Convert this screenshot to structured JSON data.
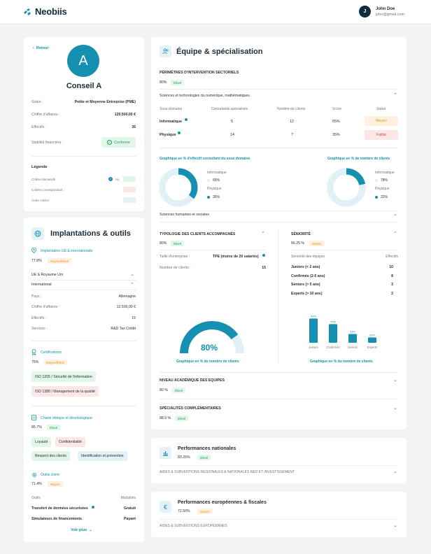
{
  "brand": {
    "name": "Neobiis"
  },
  "user": {
    "initial": "J",
    "name": "John Doe",
    "email": "john@gmail.com"
  },
  "profile": {
    "back": "Retour",
    "initial": "A",
    "name": "Conseil A",
    "rows": [
      {
        "label": "Statut :",
        "value": "Petite et Moyenne Entreprise (PME)"
      },
      {
        "label": "Chiffre d'affaires :",
        "value": "120.500,00 €"
      },
      {
        "label": "Effectifs :",
        "value": "35"
      },
      {
        "label": "Stabilité financière :",
        "value": "Conforme"
      }
    ],
    "legend_title": "Légende",
    "legend": [
      {
        "label": "Critère demandé :",
        "extra": "ou"
      },
      {
        "label": "Critère correspondant :"
      },
      {
        "label": "Autre critère :"
      }
    ]
  },
  "implant": {
    "title": "Implantations & outils",
    "intl": {
      "title": "Implantation UE & internationale",
      "pct": "77.8%",
      "badge": "Moyen/Élevé"
    },
    "rows1": [
      "UE & Royaume Uni",
      "International"
    ],
    "details": [
      {
        "label": "Pays :",
        "value": "Allemagne"
      },
      {
        "label": "Chiffre d'affaires :",
        "value": "12.500,00 €"
      },
      {
        "label": "Effectifs :",
        "value": "15"
      },
      {
        "label": "Services :",
        "value": "R&D Tax Crédit"
      }
    ],
    "certif": {
      "title": "Certifications",
      "pct": "75%",
      "badge": "Moyen/Élevé",
      "tags": [
        "ISO 1205 / Sécurité de l'information",
        "ISO 1380 / Management de la qualité"
      ]
    },
    "charte": {
      "title": "Charte éthique et déontologique",
      "pct": "85.7%",
      "badge": "Élevé",
      "tags": [
        "Loyauté",
        "Confidentialité",
        "Respect des clients",
        "Identification et prévention"
      ]
    },
    "outils": {
      "title": "Outils client",
      "pct": "71.4%",
      "badge": "Moyen",
      "col1": "Outils",
      "col2": "Modalités",
      "rows": [
        {
          "name": "Transfert de données sécurisées",
          "mode": "Gratuit"
        },
        {
          "name": "Simulateurs de financements",
          "mode": "Payant"
        }
      ]
    },
    "more": "Voir plus"
  },
  "equipe": {
    "title": "Équipe & spécialisation",
    "perim": {
      "title": "PÉRIMÈTRES D'INTERVENTION SECTORIELS",
      "pct": "80%",
      "badge": "Élevé"
    },
    "sector1": "Sciences et technologies du numérique, mathématiques",
    "headers": [
      "Sous-domaine",
      "Consultants spécialisés",
      "Nombre de clients",
      "Score",
      "Statut"
    ],
    "rows": [
      {
        "name": "Informatique",
        "consultants": "5",
        "clients": "12",
        "score": "65%",
        "status": "Moyen"
      },
      {
        "name": "Physique",
        "consultants": "14",
        "clients": "?",
        "score": "35%",
        "status": "Faible"
      }
    ],
    "chart1_title": "Graphique en % d'effectif consultant du sous domaine",
    "chart2_title": "Graphique en % de nombre de  clients",
    "donut1": [
      {
        "name": "Informatique",
        "value": "65%"
      },
      {
        "name": "Physique",
        "value": "35%"
      }
    ],
    "donut2": [
      {
        "name": "Informatique",
        "value": "78%"
      },
      {
        "name": "Physique",
        "value": "22%"
      }
    ],
    "sector2": "Sciences humaines et sociales",
    "typo": {
      "title": "TYPOLOGIE DES CLIENTS ACCOMPAGNÉS",
      "pct": "80%",
      "badge": "Élevé",
      "size_label": "Taille d'entreprise :",
      "size_value": "TPE (moins de 20 salariés)",
      "count_label": "Nombre de clients :",
      "count_value": "15",
      "gauge_value": "80%",
      "gauge_caption": "Graphique en % du nombre de clients"
    },
    "senior": {
      "title": "SÉNIORITÉ",
      "pct": "56.25 %",
      "badge": "Moyen",
      "col1": "Séniorité des équipes",
      "col2": "Effectifs",
      "rows": [
        {
          "name": "Juniors (< 2 ans)",
          "value": "10"
        },
        {
          "name": "Confirmés (2-5 ans)",
          "value": "8"
        },
        {
          "name": "Seniors (> 5 ans)",
          "value": "3"
        },
        {
          "name": "Experts (> 10 ans)",
          "value": "2"
        }
      ],
      "caption": "Graphique en % du nombre de clients"
    },
    "niveau": {
      "title": "NIVEAU ACADÉMIQUE DES EQUIPES",
      "pct": "80 %",
      "badge": "Élevé"
    },
    "special": {
      "title": "SPÉCIALITÉS COMPLÉMENTAIRES",
      "pct": "88.9 %",
      "badge": "Élevé"
    }
  },
  "perf_nat": {
    "title": "Performances nationales",
    "pct": "83.25%",
    "badge": "Élevé",
    "row": "AIDES & SUBVENTIONS REGIONALES & NATIONALES R&D ET INVESTISSEMENT"
  },
  "perf_eu": {
    "title": "Performances européennes & fiscales",
    "pct": "72.50%",
    "badge": "Moyen",
    "row": "AIDES & SUBVENTIONS EUROPÉENNES"
  },
  "colors": {
    "accent": "#1590b0",
    "dark": "#0c2e3e",
    "light": "#e4f1f7"
  },
  "chart_data": [
    {
      "type": "pie",
      "title": "Graphique en % d'effectif consultant du sous domaine",
      "categories": [
        "Informatique",
        "Physique"
      ],
      "values": [
        65,
        35
      ]
    },
    {
      "type": "pie",
      "title": "Graphique en % de nombre de  clients",
      "categories": [
        "Informatique",
        "Physique"
      ],
      "values": [
        78,
        22
      ]
    },
    {
      "type": "pie",
      "title": "Graphique en % du nombre de clients",
      "categories": [
        "TPE"
      ],
      "values": [
        80
      ]
    },
    {
      "type": "bar",
      "title": "Graphique en % du nombre de clients",
      "categories": [
        "Juniors",
        "Confirmés",
        "Seniors",
        "Experts"
      ],
      "values": [
        91,
        70,
        33,
        20
      ],
      "labels": [
        "91%",
        "70%",
        "33%",
        "20%"
      ],
      "ylim": [
        0,
        100
      ]
    }
  ]
}
